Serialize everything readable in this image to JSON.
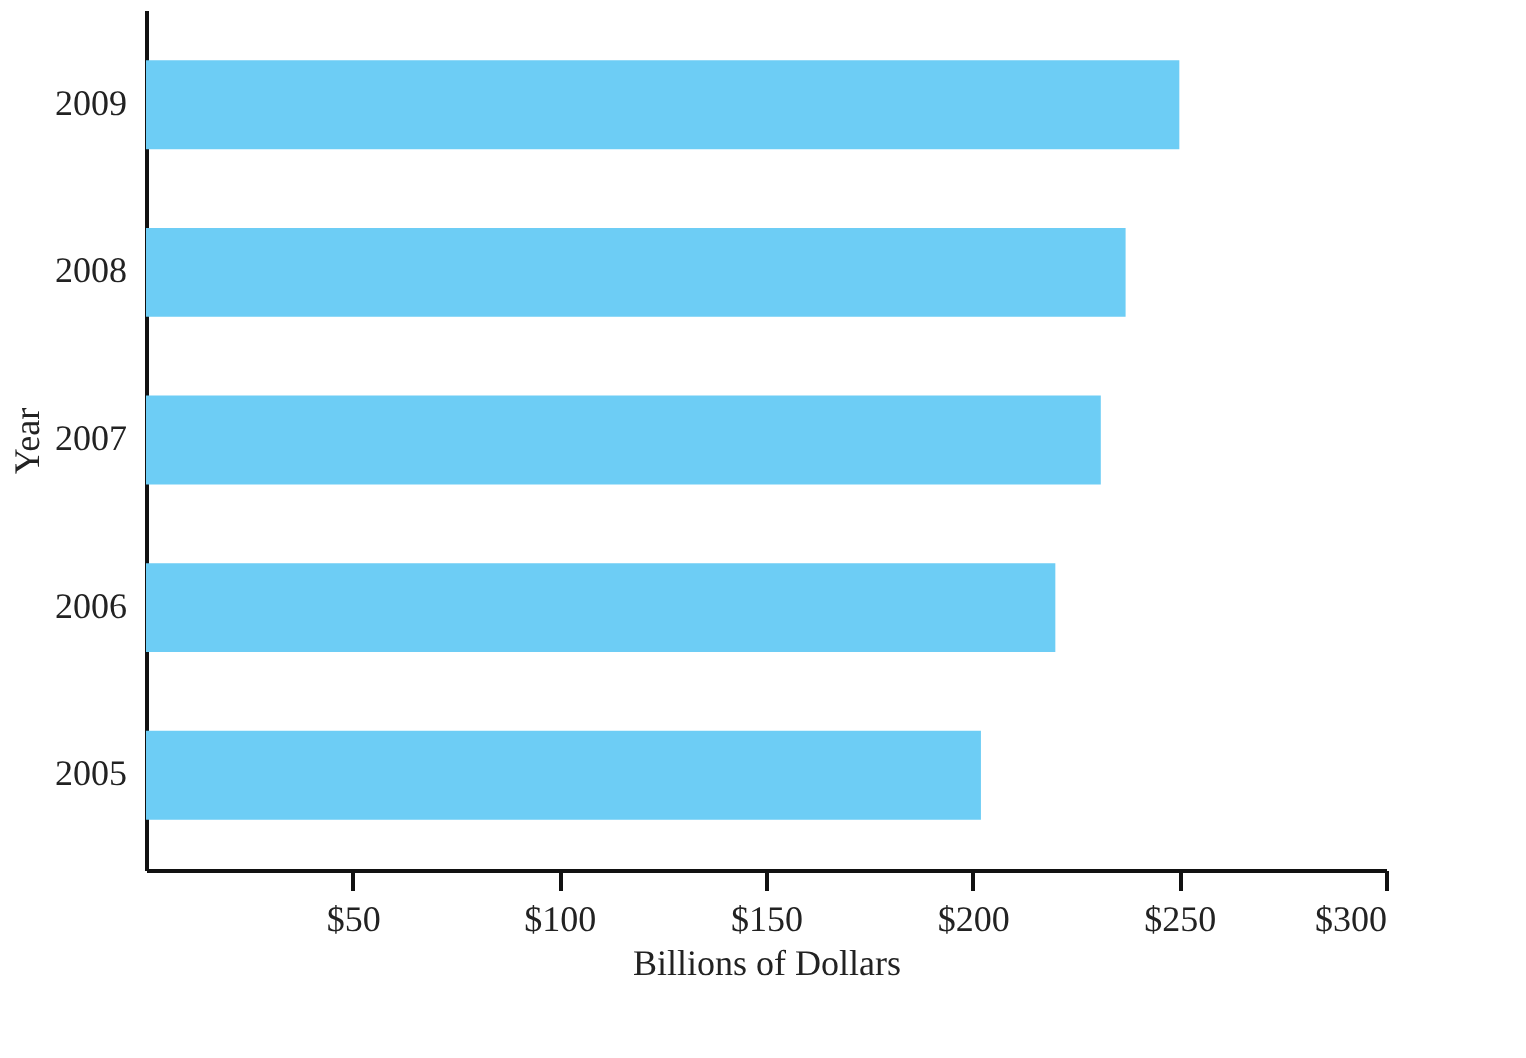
{
  "chart_data": {
    "type": "bar",
    "orientation": "horizontal",
    "xlabel": "Billions of Dollars",
    "ylabel": "Year",
    "categories": [
      "2009",
      "2008",
      "2007",
      "2006",
      "2005"
    ],
    "values": [
      250,
      237,
      231,
      220,
      202
    ],
    "color": "#6dcdf5",
    "xlim": [
      0,
      300
    ],
    "xticks": [
      {
        "value": 50,
        "label": "$50"
      },
      {
        "value": 100,
        "label": "$100"
      },
      {
        "value": 150,
        "label": "$150"
      },
      {
        "value": 200,
        "label": "$200"
      },
      {
        "value": 250,
        "label": "$250"
      },
      {
        "value": 300,
        "label": "$300"
      }
    ],
    "grid": false
  }
}
